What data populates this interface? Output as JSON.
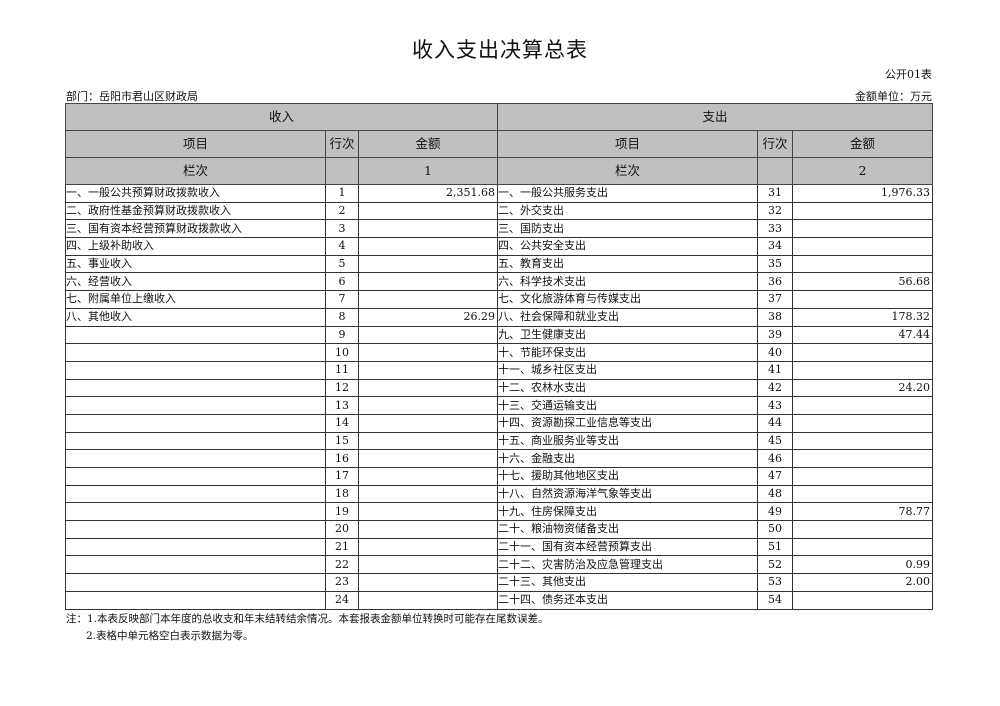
{
  "title": "收入支出决算总表",
  "table_code": "公开01表",
  "department": "部门：岳阳市君山区财政局",
  "unit": "金额单位：万元",
  "headers": {
    "income": "收入",
    "expense": "支出",
    "item": "项目",
    "row_no": "行次",
    "amount": "金额",
    "column_label": "栏次",
    "income_col": "1",
    "expense_col": "2"
  },
  "rows": [
    {
      "in_item": "一、一般公共预算财政拨款收入",
      "in_no": "1",
      "in_amt": "2,351.68",
      "ex_item": "一、一般公共服务支出",
      "ex_no": "31",
      "ex_amt": "1,976.33"
    },
    {
      "in_item": "二、政府性基金预算财政拨款收入",
      "in_no": "2",
      "in_amt": "",
      "ex_item": "二、外交支出",
      "ex_no": "32",
      "ex_amt": ""
    },
    {
      "in_item": "三、国有资本经营预算财政拨款收入",
      "in_no": "3",
      "in_amt": "",
      "ex_item": "三、国防支出",
      "ex_no": "33",
      "ex_amt": ""
    },
    {
      "in_item": "四、上级补助收入",
      "in_no": "4",
      "in_amt": "",
      "ex_item": "四、公共安全支出",
      "ex_no": "34",
      "ex_amt": ""
    },
    {
      "in_item": "五、事业收入",
      "in_no": "5",
      "in_amt": "",
      "ex_item": "五、教育支出",
      "ex_no": "35",
      "ex_amt": ""
    },
    {
      "in_item": "六、经营收入",
      "in_no": "6",
      "in_amt": "",
      "ex_item": "六、科学技术支出",
      "ex_no": "36",
      "ex_amt": "56.68"
    },
    {
      "in_item": "七、附属单位上缴收入",
      "in_no": "7",
      "in_amt": "",
      "ex_item": "七、文化旅游体育与传媒支出",
      "ex_no": "37",
      "ex_amt": ""
    },
    {
      "in_item": "八、其他收入",
      "in_no": "8",
      "in_amt": "26.29",
      "ex_item": "八、社会保障和就业支出",
      "ex_no": "38",
      "ex_amt": "178.32"
    },
    {
      "in_item": "",
      "in_no": "9",
      "in_amt": "",
      "ex_item": "九、卫生健康支出",
      "ex_no": "39",
      "ex_amt": "47.44"
    },
    {
      "in_item": "",
      "in_no": "10",
      "in_amt": "",
      "ex_item": "十、节能环保支出",
      "ex_no": "40",
      "ex_amt": ""
    },
    {
      "in_item": "",
      "in_no": "11",
      "in_amt": "",
      "ex_item": "十一、城乡社区支出",
      "ex_no": "41",
      "ex_amt": ""
    },
    {
      "in_item": "",
      "in_no": "12",
      "in_amt": "",
      "ex_item": "十二、农林水支出",
      "ex_no": "42",
      "ex_amt": "24.20"
    },
    {
      "in_item": "",
      "in_no": "13",
      "in_amt": "",
      "ex_item": "十三、交通运输支出",
      "ex_no": "43",
      "ex_amt": ""
    },
    {
      "in_item": "",
      "in_no": "14",
      "in_amt": "",
      "ex_item": "十四、资源勘探工业信息等支出",
      "ex_no": "44",
      "ex_amt": ""
    },
    {
      "in_item": "",
      "in_no": "15",
      "in_amt": "",
      "ex_item": "十五、商业服务业等支出",
      "ex_no": "45",
      "ex_amt": ""
    },
    {
      "in_item": "",
      "in_no": "16",
      "in_amt": "",
      "ex_item": "十六、金融支出",
      "ex_no": "46",
      "ex_amt": ""
    },
    {
      "in_item": "",
      "in_no": "17",
      "in_amt": "",
      "ex_item": "十七、援助其他地区支出",
      "ex_no": "47",
      "ex_amt": ""
    },
    {
      "in_item": "",
      "in_no": "18",
      "in_amt": "",
      "ex_item": "十八、自然资源海洋气象等支出",
      "ex_no": "48",
      "ex_amt": ""
    },
    {
      "in_item": "",
      "in_no": "19",
      "in_amt": "",
      "ex_item": "十九、住房保障支出",
      "ex_no": "49",
      "ex_amt": "78.77"
    },
    {
      "in_item": "",
      "in_no": "20",
      "in_amt": "",
      "ex_item": "二十、粮油物资储备支出",
      "ex_no": "50",
      "ex_amt": ""
    },
    {
      "in_item": "",
      "in_no": "21",
      "in_amt": "",
      "ex_item": "二十一、国有资本经营预算支出",
      "ex_no": "51",
      "ex_amt": ""
    },
    {
      "in_item": "",
      "in_no": "22",
      "in_amt": "",
      "ex_item": "二十二、灾害防治及应急管理支出",
      "ex_no": "52",
      "ex_amt": "0.99"
    },
    {
      "in_item": "",
      "in_no": "23",
      "in_amt": "",
      "ex_item": "二十三、其他支出",
      "ex_no": "53",
      "ex_amt": "2.00"
    },
    {
      "in_item": "",
      "in_no": "24",
      "in_amt": "",
      "ex_item": "二十四、债务还本支出",
      "ex_no": "54",
      "ex_amt": ""
    }
  ],
  "notes": [
    "注：1.本表反映部门本年度的总收支和年末结转结余情况。本套报表金额单位转换时可能存在尾数误差。",
    "2.表格中单元格空白表示数据为零。"
  ]
}
